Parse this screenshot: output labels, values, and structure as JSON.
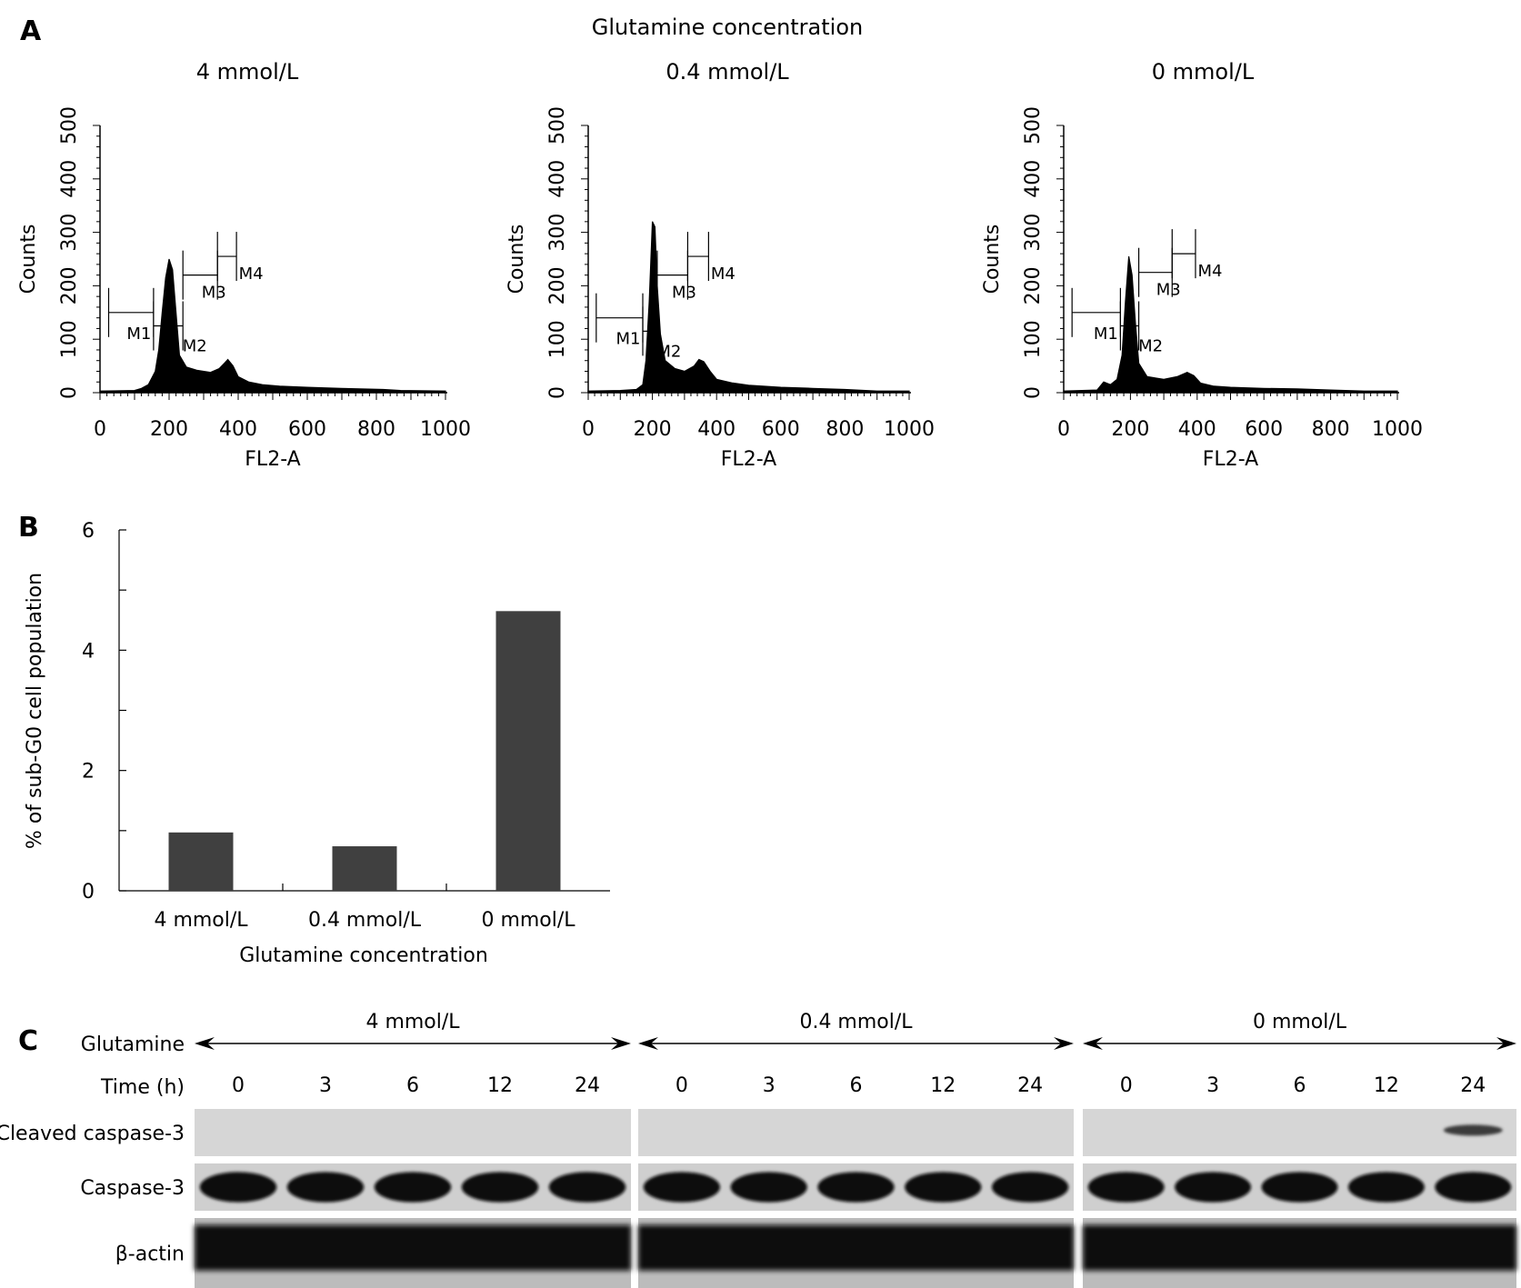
{
  "panel_a": {
    "letter": "A",
    "header": "Glutamine concentration",
    "histograms": [
      {
        "title": "4 mmol/L",
        "xlabel": "FL2-A",
        "ylabel": "Counts",
        "xticks": [
          "0",
          "200",
          "400",
          "600",
          "800",
          "1000"
        ],
        "yticks": [
          "0",
          "100",
          "200",
          "300",
          "400",
          "500"
        ],
        "markers": [
          "M1",
          "M2",
          "M3",
          "M4"
        ]
      },
      {
        "title": "0.4 mmol/L",
        "xlabel": "FL2-A",
        "ylabel": "Counts",
        "xticks": [
          "0",
          "200",
          "400",
          "600",
          "800",
          "1000"
        ],
        "yticks": [
          "0",
          "100",
          "200",
          "300",
          "400",
          "500"
        ],
        "markers": [
          "M1",
          "M2",
          "M3",
          "M4"
        ]
      },
      {
        "title": "0 mmol/L",
        "xlabel": "FL2-A",
        "ylabel": "Counts",
        "xticks": [
          "0",
          "200",
          "400",
          "600",
          "800",
          "1000"
        ],
        "yticks": [
          "0",
          "100",
          "200",
          "300",
          "400",
          "500"
        ],
        "markers": [
          "M1",
          "M2",
          "M3",
          "M4"
        ]
      }
    ]
  },
  "chart_data": {
    "type": "bar",
    "letter": "B",
    "categories": [
      "4 mmol/L",
      "0.4 mmol/L",
      "0 mmol/L"
    ],
    "values": [
      0.97,
      0.74,
      4.65
    ],
    "xlabel": "Glutamine concentration",
    "ylabel": "% of sub-G0 cell population",
    "ylim": [
      0,
      6
    ],
    "yticks": [
      "0",
      "2",
      "4",
      "6"
    ],
    "bar_color": "#404040"
  },
  "panel_c": {
    "letter": "C",
    "row_glutamine": "Glutamine",
    "row_time": "Time (h)",
    "groups": [
      {
        "label": "4 mmol/L",
        "times": [
          "0",
          "3",
          "6",
          "12",
          "24"
        ]
      },
      {
        "label": "0.4 mmol/L",
        "times": [
          "0",
          "3",
          "6",
          "12",
          "24"
        ]
      },
      {
        "label": "0 mmol/L",
        "times": [
          "0",
          "3",
          "6",
          "12",
          "24"
        ]
      }
    ],
    "blots": [
      {
        "label": "Cleaved caspase-3"
      },
      {
        "label": "Caspase-3"
      },
      {
        "label": "β-actin"
      }
    ]
  }
}
